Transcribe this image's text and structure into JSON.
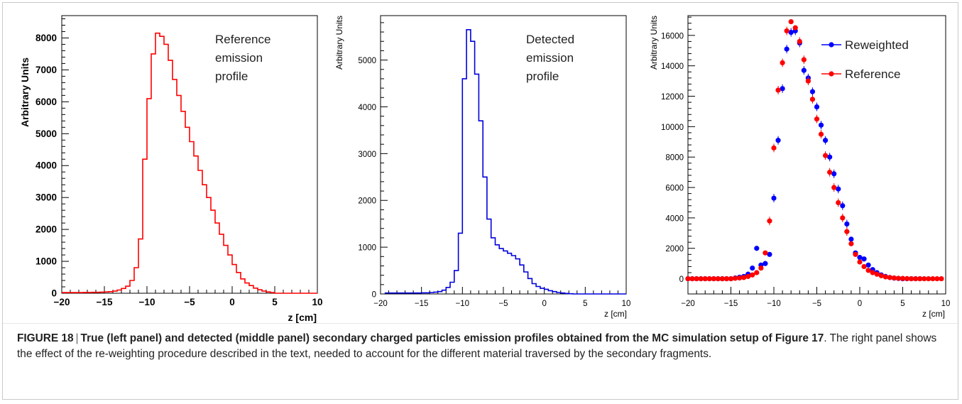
{
  "figure": {
    "caption_label": "FIGURE 18",
    "caption_separator": "|",
    "caption_bold": "True (left panel) and detected (middle panel) secondary charged particles emission profiles obtained from the MC simulation setup of Figure 17",
    "caption_rest": ". The right panel shows the effect of the re-weighting procedure described in the text, needed to account for the different material traversed by the secondary fragments."
  },
  "panels": {
    "left": {
      "ylabel": "Arbitrary Units",
      "xlabel": "z [cm]",
      "annotation": [
        "Reference",
        "emission",
        "profile"
      ]
    },
    "middle": {
      "ylabel": "Arbitrary Units",
      "xlabel": "z [cm]",
      "annotation": [
        "Detected",
        "emission",
        "profile"
      ]
    },
    "right": {
      "ylabel": "Arbitrary Units",
      "xlabel": "z [cm]"
    }
  },
  "colors": {
    "reference": "#ff0000",
    "detected": "#0000dd",
    "reweighted": "#0000ff"
  },
  "chart_data": [
    {
      "type": "line",
      "panel": "left",
      "style": "step-histogram",
      "x_range": [
        -20,
        10
      ],
      "ylim": [
        0,
        8700
      ],
      "x_ticks": [
        -20,
        -15,
        -10,
        -5,
        0,
        5,
        10
      ],
      "y_ticks": [
        0,
        1000,
        2000,
        3000,
        4000,
        5000,
        6000,
        7000,
        8000
      ],
      "xlabel": "z [cm]",
      "ylabel": "Arbitrary Units",
      "series": [
        {
          "color": "#ff0000",
          "x": [
            -20,
            -19.5,
            -19,
            -18.5,
            -18,
            -17.5,
            -17,
            -16.5,
            -16,
            -15.5,
            -15,
            -14.5,
            -14,
            -13.5,
            -13,
            -12.5,
            -12,
            -11.5,
            -11,
            -10.5,
            -10,
            -9.5,
            -9,
            -8.5,
            -8,
            -7.5,
            -7,
            -6.5,
            -6,
            -5.5,
            -5,
            -4.5,
            -4,
            -3.5,
            -3,
            -2.5,
            -2,
            -1.5,
            -1,
            -0.5,
            0,
            0.5,
            1,
            1.5,
            2,
            2.5,
            3,
            3.5,
            4,
            4.5,
            5,
            10
          ],
          "y": [
            20,
            20,
            20,
            20,
            20,
            25,
            25,
            30,
            30,
            35,
            40,
            50,
            70,
            100,
            150,
            220,
            400,
            800,
            1700,
            4200,
            6100,
            7500,
            8150,
            8050,
            7800,
            7300,
            6700,
            6200,
            5700,
            5200,
            4750,
            4300,
            3850,
            3400,
            3000,
            2600,
            2200,
            1850,
            1500,
            1200,
            900,
            650,
            450,
            320,
            240,
            160,
            110,
            70,
            40,
            20,
            0,
            0
          ]
        }
      ]
    },
    {
      "type": "line",
      "panel": "middle",
      "style": "step-histogram",
      "x_range": [
        -20,
        10
      ],
      "ylim": [
        0,
        5950
      ],
      "x_ticks": [
        -20,
        -15,
        -10,
        -5,
        0,
        5,
        10
      ],
      "y_ticks": [
        0,
        1000,
        2000,
        3000,
        4000,
        5000
      ],
      "xlabel": "z [cm]",
      "ylabel": "Arbitrary Units",
      "series": [
        {
          "color": "#0000dd",
          "x": [
            -19.5,
            -19,
            -18.5,
            -18,
            -17.5,
            -17,
            -16.5,
            -16,
            -15.5,
            -15,
            -14.5,
            -14,
            -13.5,
            -13,
            -12.5,
            -12,
            -11.5,
            -11,
            -10.5,
            -10,
            -9.5,
            -9,
            -8.5,
            -8,
            -7.5,
            -7,
            -6.5,
            -6,
            -5.5,
            -5,
            -4.5,
            -4,
            -3.5,
            -3,
            -2.5,
            -2,
            -1.5,
            -1,
            -0.5,
            0,
            0.5,
            1,
            1.5,
            2,
            2.5,
            3,
            3.5,
            10
          ],
          "y": [
            20,
            20,
            20,
            20,
            20,
            20,
            20,
            20,
            20,
            25,
            25,
            30,
            40,
            50,
            80,
            140,
            250,
            500,
            1300,
            4600,
            5650,
            5400,
            4700,
            3700,
            2500,
            1600,
            1200,
            1050,
            970,
            920,
            870,
            820,
            750,
            620,
            470,
            330,
            220,
            160,
            120,
            100,
            70,
            50,
            30,
            20,
            10,
            5,
            0,
            0
          ]
        }
      ]
    },
    {
      "type": "scatter",
      "panel": "right",
      "x_range": [
        -20,
        10
      ],
      "ylim": [
        -1000,
        17300
      ],
      "x_ticks": [
        -20,
        -15,
        -10,
        -5,
        0,
        5,
        10
      ],
      "y_ticks": [
        0,
        2000,
        4000,
        6000,
        8000,
        10000,
        12000,
        14000,
        16000
      ],
      "xlabel": "z [cm]",
      "ylabel": "Arbitrary Units",
      "legend_position": "top-right",
      "series": [
        {
          "name": "Reweighted",
          "color": "#0000ff",
          "x": [
            -20,
            -19.5,
            -19,
            -18.5,
            -18,
            -17.5,
            -17,
            -16.5,
            -16,
            -15.5,
            -15,
            -14.5,
            -14,
            -13.5,
            -13,
            -12.5,
            -12,
            -11.5,
            -11,
            -10.5,
            -10,
            -9.5,
            -9,
            -8.5,
            -8,
            -7.5,
            -7,
            -6.5,
            -6,
            -5.5,
            -5,
            -4.5,
            -4,
            -3.5,
            -3,
            -2.5,
            -2,
            -1.5,
            -1,
            -0.5,
            0,
            0.5,
            1,
            1.5,
            2,
            2.5,
            3,
            3.5,
            4,
            4.5,
            5,
            5.5,
            6,
            6.5,
            7
          ],
          "y": [
            0,
            0,
            0,
            0,
            0,
            0,
            0,
            0,
            0,
            0,
            0,
            50,
            100,
            150,
            300,
            700,
            2000,
            900,
            1000,
            1600,
            5300,
            9100,
            12500,
            15100,
            16200,
            16300,
            15500,
            13700,
            13200,
            12300,
            11300,
            10100,
            9100,
            8000,
            6900,
            5900,
            4800,
            3600,
            2600,
            1700,
            1400,
            1300,
            900,
            600,
            400,
            250,
            150,
            80,
            40,
            20,
            0,
            0,
            0,
            0,
            0
          ]
        },
        {
          "name": "Reference",
          "color": "#ff0000",
          "x": [
            -20,
            -19.5,
            -19,
            -18.5,
            -18,
            -17.5,
            -17,
            -16.5,
            -16,
            -15.5,
            -15,
            -14.5,
            -14,
            -13.5,
            -13,
            -12.5,
            -12,
            -11.5,
            -11,
            -10.5,
            -10,
            -9.5,
            -9,
            -8.5,
            -8,
            -7.5,
            -7,
            -6.5,
            -6,
            -5.5,
            -5,
            -4.5,
            -4,
            -3.5,
            -3,
            -2.5,
            -2,
            -1.5,
            -1,
            -0.5,
            0,
            0.5,
            1,
            1.5,
            2,
            2.5,
            3,
            3.5,
            4,
            4.5,
            5,
            5.5,
            6,
            6.5,
            7,
            7.5,
            8,
            8.5,
            9,
            9.5
          ],
          "y": [
            0,
            0,
            0,
            0,
            0,
            0,
            0,
            0,
            0,
            0,
            0,
            30,
            50,
            80,
            150,
            250,
            400,
            700,
            1700,
            3800,
            8600,
            12400,
            14200,
            16300,
            16900,
            16500,
            15600,
            14400,
            13000,
            11800,
            10500,
            9500,
            8100,
            7000,
            6000,
            5000,
            4000,
            3100,
            2300,
            1600,
            1100,
            800,
            550,
            400,
            300,
            200,
            120,
            80,
            50,
            30,
            20,
            10,
            0,
            0,
            0,
            0,
            0,
            0,
            0,
            0
          ]
        }
      ]
    }
  ]
}
